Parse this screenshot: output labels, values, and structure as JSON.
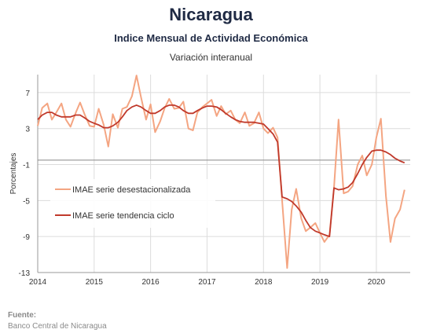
{
  "header": {
    "title": "Nicaragua",
    "subtitle": "Indice Mensual de  Actividad Económica",
    "subtitle2": "Variación interanual"
  },
  "source": {
    "label": "Fuente:",
    "text": "Banco Central de Nicaragua"
  },
  "chart_data": {
    "type": "line",
    "ylabel": "Porcentajes",
    "ylim": [
      -13,
      9
    ],
    "yticks": [
      7,
      3,
      -1,
      -5,
      -9,
      -13
    ],
    "xlim": [
      2014.0,
      2020.6
    ],
    "xticks": [
      2014,
      2015,
      2016,
      2017,
      2018,
      2019,
      2020
    ],
    "grid": true,
    "legend": "left-middle",
    "reference_line": -0.5,
    "series": [
      {
        "name": "IMAE serie desestacionalizada",
        "color": "#f4a582",
        "x": [
          2014.0,
          2014.08,
          2014.17,
          2014.25,
          2014.33,
          2014.42,
          2014.5,
          2014.58,
          2014.67,
          2014.75,
          2014.83,
          2014.92,
          2015.0,
          2015.08,
          2015.17,
          2015.25,
          2015.33,
          2015.42,
          2015.5,
          2015.58,
          2015.67,
          2015.75,
          2015.83,
          2015.92,
          2016.0,
          2016.08,
          2016.17,
          2016.25,
          2016.33,
          2016.42,
          2016.5,
          2016.58,
          2016.67,
          2016.75,
          2016.83,
          2016.92,
          2017.0,
          2017.08,
          2017.17,
          2017.25,
          2017.33,
          2017.42,
          2017.5,
          2017.58,
          2017.67,
          2017.75,
          2017.83,
          2017.92,
          2018.0,
          2018.08,
          2018.17,
          2018.25,
          2018.33,
          2018.42,
          2018.5,
          2018.58,
          2018.67,
          2018.75,
          2018.83,
          2018.92,
          2019.0,
          2019.08,
          2019.17,
          2019.25,
          2019.33,
          2019.42,
          2019.5,
          2019.58,
          2019.67,
          2019.75,
          2019.83,
          2019.92,
          2020.0,
          2020.08,
          2020.17,
          2020.25,
          2020.33,
          2020.42,
          2020.5
        ],
        "y": [
          3.3,
          5.3,
          5.8,
          4.0,
          4.8,
          5.8,
          4.0,
          3.2,
          4.7,
          5.9,
          4.6,
          3.3,
          3.2,
          5.2,
          3.4,
          1.0,
          4.6,
          3.1,
          5.2,
          5.4,
          6.6,
          8.9,
          6.5,
          4.0,
          5.7,
          2.6,
          3.8,
          5.3,
          6.3,
          5.2,
          5.3,
          6.0,
          3.0,
          2.8,
          4.8,
          5.4,
          5.8,
          6.2,
          4.4,
          5.5,
          4.6,
          5.0,
          4.0,
          3.6,
          4.8,
          3.3,
          3.6,
          4.8,
          3.0,
          2.5,
          3.1,
          2.0,
          -5.0,
          -12.5,
          -6.0,
          -3.7,
          -7.0,
          -8.4,
          -8.0,
          -7.5,
          -8.6,
          -9.6,
          -8.8,
          -3.6,
          4.0,
          -4.2,
          -4.0,
          -3.4,
          -1.0,
          0.0,
          -2.2,
          -1.0,
          2.0,
          4.1,
          -4.5,
          -9.6,
          -7.0,
          -6.0,
          -3.8
        ]
      },
      {
        "name": "IMAE serie  tendencia ciclo",
        "color": "#c0392b",
        "x": [
          2014.0,
          2014.08,
          2014.17,
          2014.25,
          2014.33,
          2014.42,
          2014.5,
          2014.58,
          2014.67,
          2014.75,
          2014.83,
          2014.92,
          2015.0,
          2015.08,
          2015.17,
          2015.25,
          2015.33,
          2015.42,
          2015.5,
          2015.58,
          2015.67,
          2015.75,
          2015.83,
          2015.92,
          2016.0,
          2016.08,
          2016.17,
          2016.25,
          2016.33,
          2016.42,
          2016.5,
          2016.58,
          2016.67,
          2016.75,
          2016.83,
          2016.92,
          2017.0,
          2017.08,
          2017.17,
          2017.25,
          2017.33,
          2017.42,
          2017.5,
          2017.58,
          2017.67,
          2017.75,
          2017.83,
          2017.92,
          2018.0,
          2018.08,
          2018.17,
          2018.25,
          2018.33,
          2018.42,
          2018.5,
          2018.58,
          2018.67,
          2018.75,
          2018.83,
          2018.92,
          2019.0,
          2019.08,
          2019.17,
          2019.25,
          2019.33,
          2019.42,
          2019.5,
          2019.58,
          2019.67,
          2019.75,
          2019.83,
          2019.92,
          2020.0,
          2020.08,
          2020.17,
          2020.25,
          2020.33,
          2020.42,
          2020.5
        ],
        "y": [
          4.0,
          4.5,
          4.8,
          4.8,
          4.5,
          4.3,
          4.3,
          4.3,
          4.5,
          4.5,
          4.2,
          3.8,
          3.6,
          3.4,
          3.1,
          3.1,
          3.3,
          3.7,
          4.3,
          5.0,
          5.4,
          5.6,
          5.4,
          5.0,
          4.7,
          4.7,
          5.0,
          5.4,
          5.6,
          5.6,
          5.4,
          5.0,
          4.7,
          4.7,
          5.0,
          5.3,
          5.5,
          5.5,
          5.4,
          5.1,
          4.7,
          4.3,
          4.0,
          3.8,
          3.7,
          3.7,
          3.7,
          3.6,
          3.5,
          3.0,
          2.4,
          1.5,
          -4.6,
          -4.8,
          -5.1,
          -5.6,
          -6.3,
          -7.2,
          -8.0,
          -8.4,
          -8.6,
          -8.8,
          -9.0,
          -3.6,
          -3.8,
          -3.7,
          -3.5,
          -3.0,
          -2.0,
          -1.0,
          -0.2,
          0.5,
          0.6,
          0.6,
          0.4,
          0.1,
          -0.3,
          -0.6,
          -0.8
        ]
      }
    ]
  }
}
